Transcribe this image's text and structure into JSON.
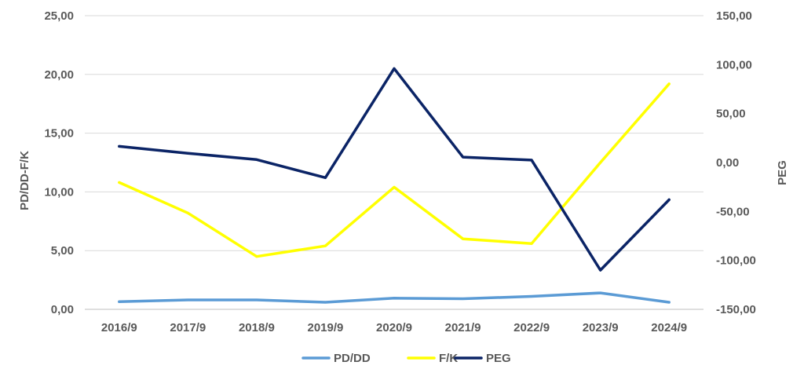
{
  "chart_data": {
    "type": "line",
    "categories": [
      "2016/9",
      "2017/9",
      "2018/9",
      "2019/9",
      "2020/9",
      "2021/9",
      "2022/9",
      "2023/9",
      "2024/9"
    ],
    "y_left": {
      "label": "PD/DD-F/K",
      "range": [
        0,
        25
      ],
      "ticks": [
        0,
        5,
        10,
        15,
        20,
        25
      ],
      "tick_labels": [
        "0,00",
        "5,00",
        "10,00",
        "15,00",
        "20,00",
        "25,00"
      ]
    },
    "y_right": {
      "label": "PEG",
      "range": [
        -150,
        150
      ],
      "ticks": [
        -150,
        -100,
        -50,
        0,
        50,
        100,
        150
      ],
      "tick_labels": [
        "-150,00",
        "-100,00",
        "-50,00",
        "0,00",
        "50,00",
        "100,00",
        "150,00"
      ]
    },
    "grid": true,
    "legend_position": "bottom",
    "series": [
      {
        "name": "PD/DD",
        "axis": "left",
        "color": "#5B9BD5",
        "values": [
          0.65,
          0.8,
          0.8,
          0.6,
          0.95,
          0.9,
          1.1,
          1.4,
          0.6
        ]
      },
      {
        "name": "F/K",
        "axis": "left",
        "color": "#FFFF00",
        "values": [
          10.8,
          8.2,
          4.5,
          5.4,
          10.4,
          6.0,
          5.6,
          12.5,
          19.2
        ]
      },
      {
        "name": "PEG",
        "axis": "right",
        "color": "#0B2466",
        "values": [
          16.5,
          9.5,
          3.0,
          -15.5,
          96.0,
          5.5,
          2.5,
          -110.0,
          -38.0
        ]
      }
    ]
  }
}
